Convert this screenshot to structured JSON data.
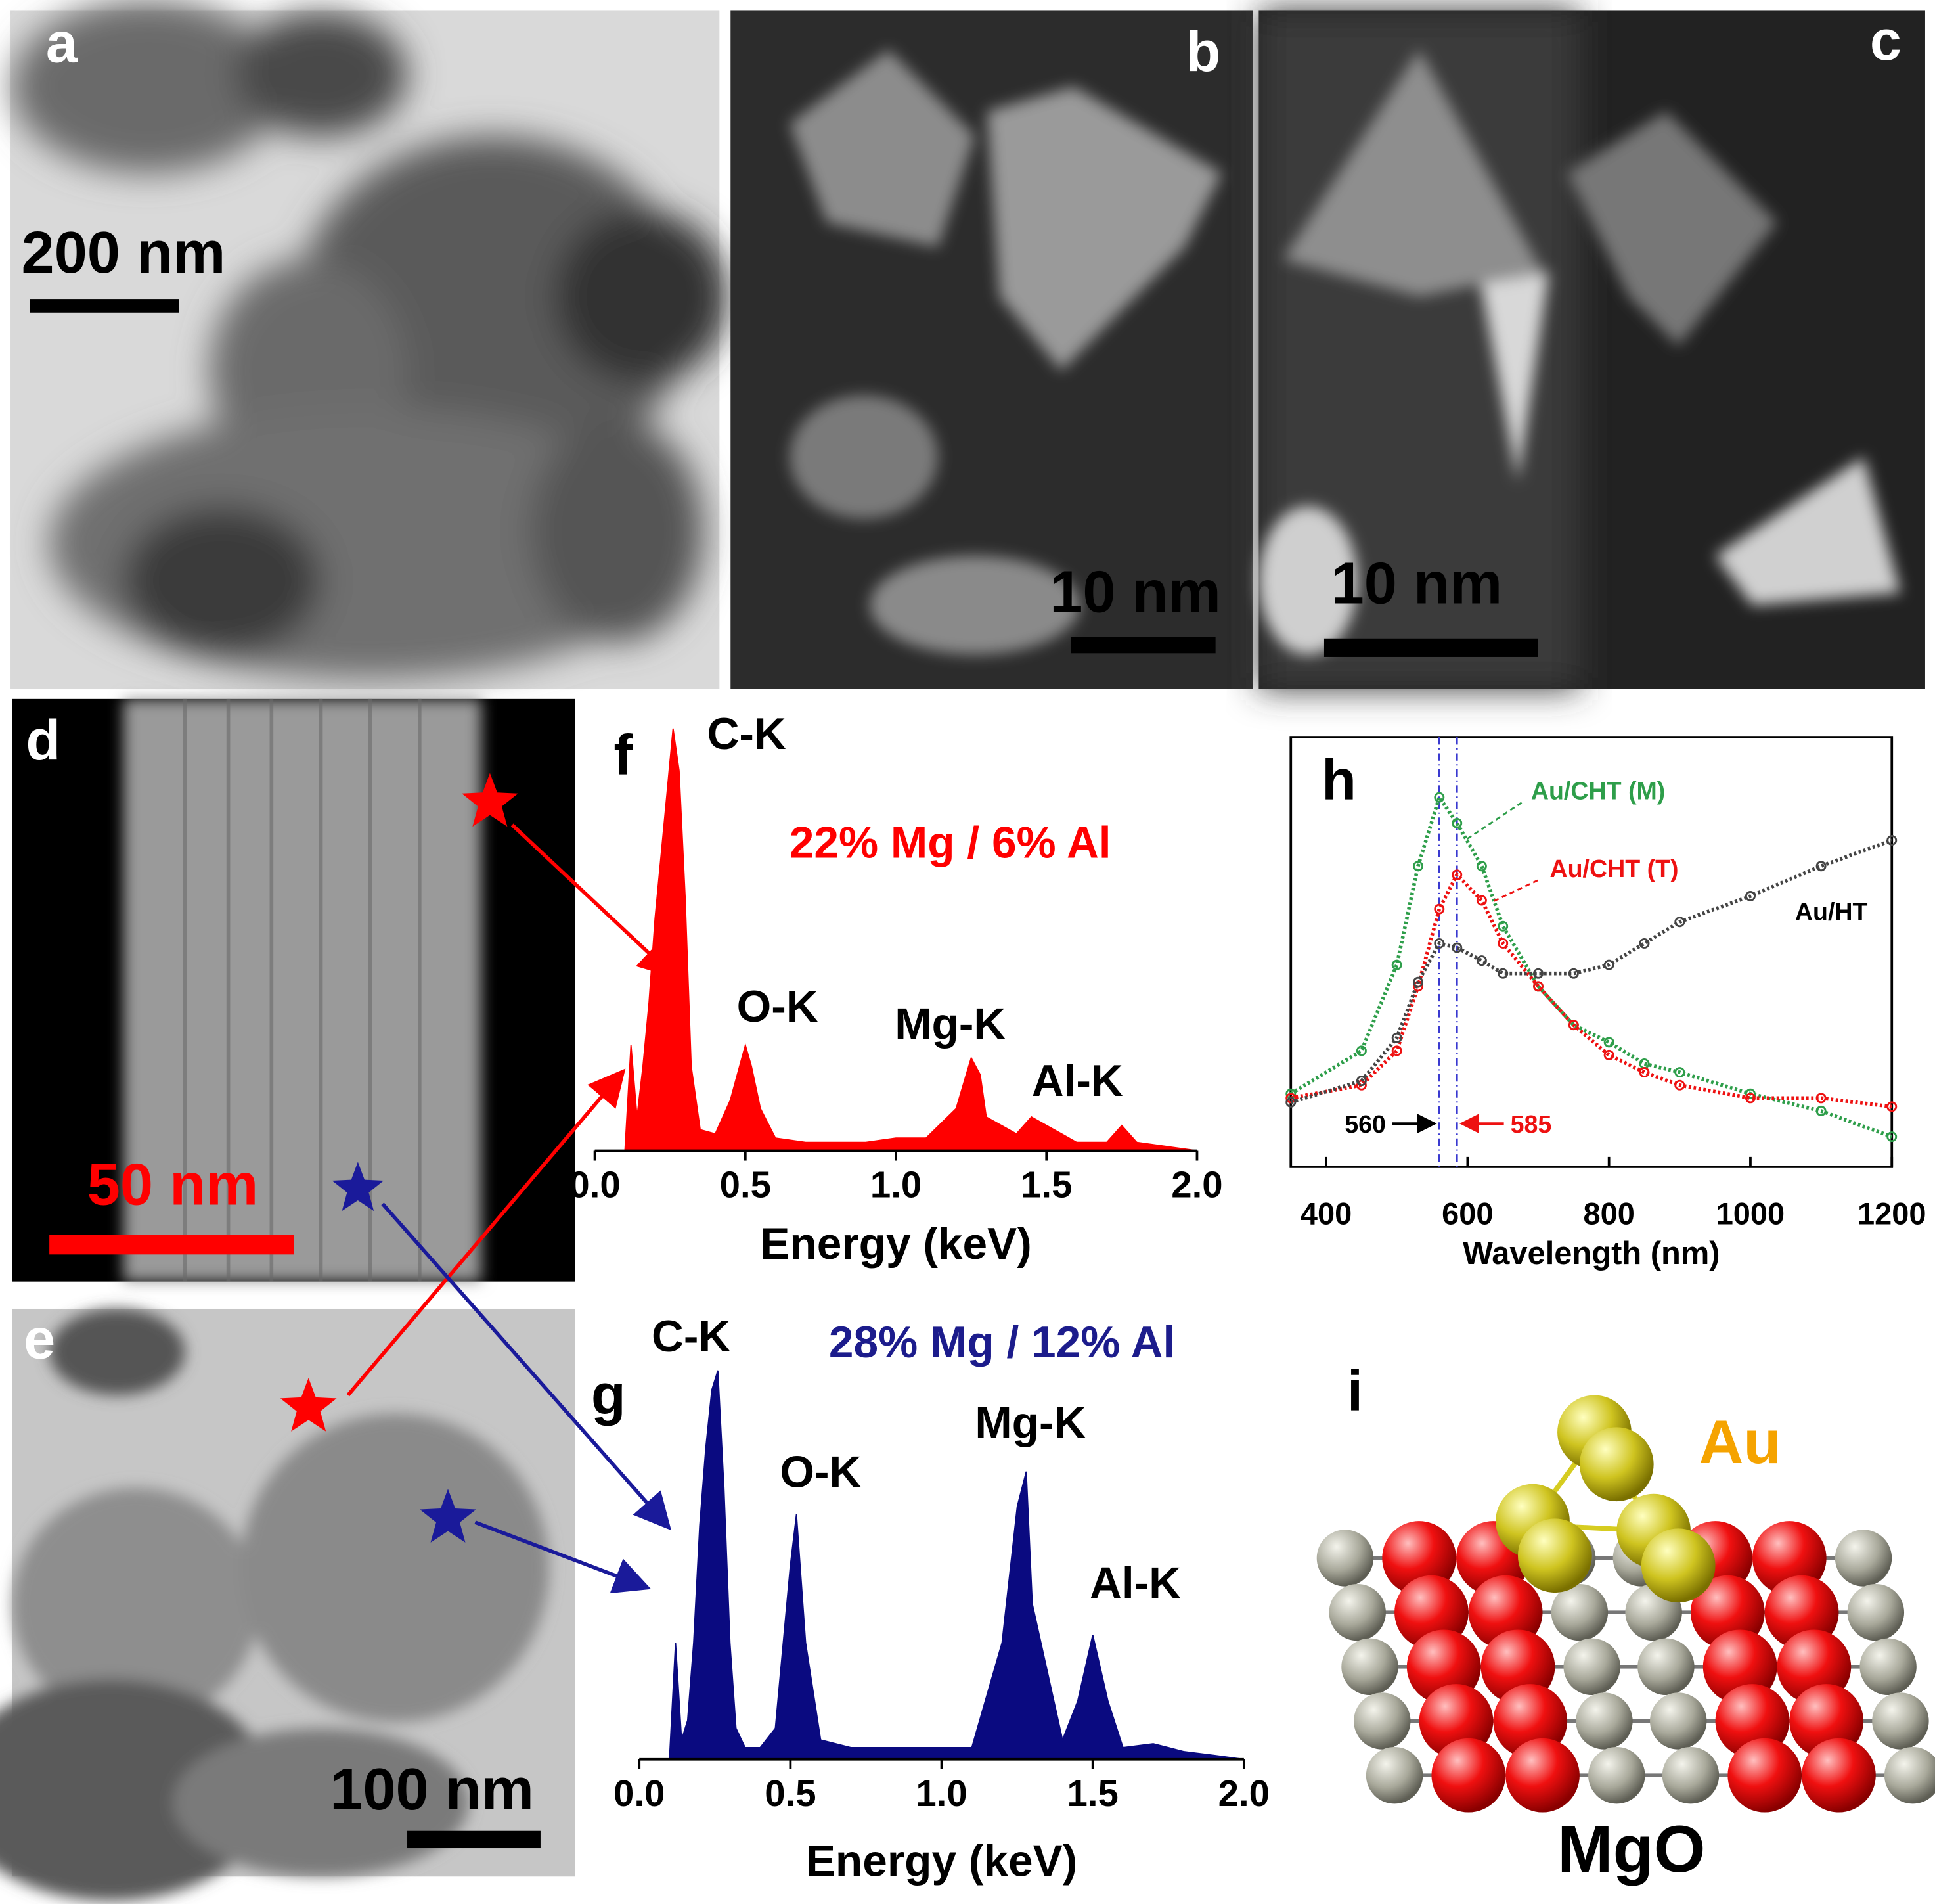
{
  "panel_labels": [
    "a",
    "b",
    "c",
    "d",
    "e",
    "f",
    "g",
    "h",
    "i"
  ],
  "scale_bars": [
    "200 nm",
    "10 nm",
    "10 nm",
    "50 nm",
    "100 nm"
  ],
  "model_labels": [
    "Au",
    "MgO"
  ],
  "chart_data": [
    {
      "type": "area",
      "color": "#ff0000",
      "x": [
        0.1,
        0.12,
        0.14,
        0.16,
        0.18,
        0.2,
        0.22,
        0.24,
        0.26,
        0.28,
        0.3,
        0.32,
        0.35,
        0.4,
        0.45,
        0.5,
        0.52,
        0.55,
        0.6,
        0.7,
        0.8,
        0.9,
        1.0,
        1.1,
        1.2,
        1.25,
        1.28,
        1.3,
        1.4,
        1.45,
        1.5,
        1.55,
        1.6,
        1.7,
        1.75,
        1.8,
        1.9,
        2.0
      ],
      "values": [
        0,
        25,
        8,
        20,
        35,
        55,
        70,
        85,
        100,
        90,
        60,
        20,
        5,
        4,
        12,
        25,
        20,
        10,
        3,
        2,
        2,
        2,
        3,
        3,
        10,
        22,
        18,
        8,
        4,
        8,
        6,
        4,
        2,
        2,
        6,
        2,
        1,
        0
      ],
      "xlim": [
        0,
        2
      ],
      "ylim": [
        0,
        100
      ],
      "xticks": [
        {
          "value": 0,
          "label": "0.0"
        },
        0.5,
        {
          "value": 1,
          "label": "1.0"
        },
        1.5,
        {
          "value": 2,
          "label": "2.0"
        }
      ],
      "xlabel": "Energy (keV)",
      "annotation": "22% Mg / 6% Al",
      "annotation_color": "#ff0000",
      "peak_labels": [
        "C-K",
        "O-K",
        "Mg-K",
        "Al-K"
      ]
    },
    {
      "type": "area",
      "color": "#0a0a80",
      "x": [
        0.1,
        0.12,
        0.14,
        0.16,
        0.18,
        0.2,
        0.22,
        0.24,
        0.26,
        0.28,
        0.3,
        0.32,
        0.35,
        0.4,
        0.45,
        0.5,
        0.52,
        0.55,
        0.6,
        0.7,
        0.8,
        0.9,
        1.0,
        1.1,
        1.2,
        1.25,
        1.28,
        1.3,
        1.4,
        1.45,
        1.5,
        1.55,
        1.6,
        1.7,
        1.75,
        1.8,
        1.9,
        2.0
      ],
      "values": [
        0,
        30,
        5,
        10,
        30,
        60,
        80,
        95,
        100,
        70,
        30,
        8,
        3,
        3,
        8,
        50,
        63,
        30,
        5,
        3,
        3,
        3,
        3,
        3,
        30,
        65,
        74,
        40,
        5,
        15,
        32,
        15,
        3,
        4,
        3,
        2,
        1,
        0
      ],
      "xlim": [
        0,
        2
      ],
      "ylim": [
        0,
        100
      ],
      "xticks": [
        {
          "value": 0,
          "label": "0.0"
        },
        0.5,
        {
          "value": 1,
          "label": "1.0"
        },
        1.5,
        {
          "value": 2,
          "label": "2.0"
        }
      ],
      "xlabel": "Energy (keV)",
      "annotation": "28% Mg / 12% Al",
      "annotation_color": "#1c1c8c",
      "peak_labels": [
        "C-K",
        "O-K",
        "Mg-K",
        "Al-K"
      ]
    },
    {
      "type": "line",
      "x": [
        350,
        450,
        500,
        530,
        560,
        585,
        620,
        650,
        700,
        750,
        800,
        850,
        900,
        1000,
        1100,
        1200
      ],
      "series": [
        {
          "name": "Au/CHT (M)",
          "color": "#2e9e4a",
          "values": [
            17,
            27,
            47,
            70,
            86,
            80,
            70,
            56,
            42,
            33,
            29,
            24,
            22,
            17,
            13,
            7
          ]
        },
        {
          "name": "Au/CHT (T)",
          "color": "#ee1111",
          "values": [
            16,
            19,
            27,
            42,
            60,
            68,
            62,
            52,
            42,
            33,
            26,
            22,
            19,
            16,
            16,
            14
          ]
        },
        {
          "name": "Au/HT",
          "color": "#444444",
          "values": [
            15,
            20,
            30,
            43,
            52,
            51,
            48,
            45,
            45,
            45,
            47,
            52,
            57,
            63,
            70,
            76
          ]
        }
      ],
      "xlim": [
        350,
        1200
      ],
      "ylim": [
        0,
        100
      ],
      "xticks": [
        400,
        600,
        800,
        1000,
        1200
      ],
      "xlabel": "Wavelength (nm)",
      "vlines": [
        {
          "value": 560,
          "label": "560"
        },
        {
          "value": 585,
          "label": "585"
        }
      ]
    }
  ]
}
